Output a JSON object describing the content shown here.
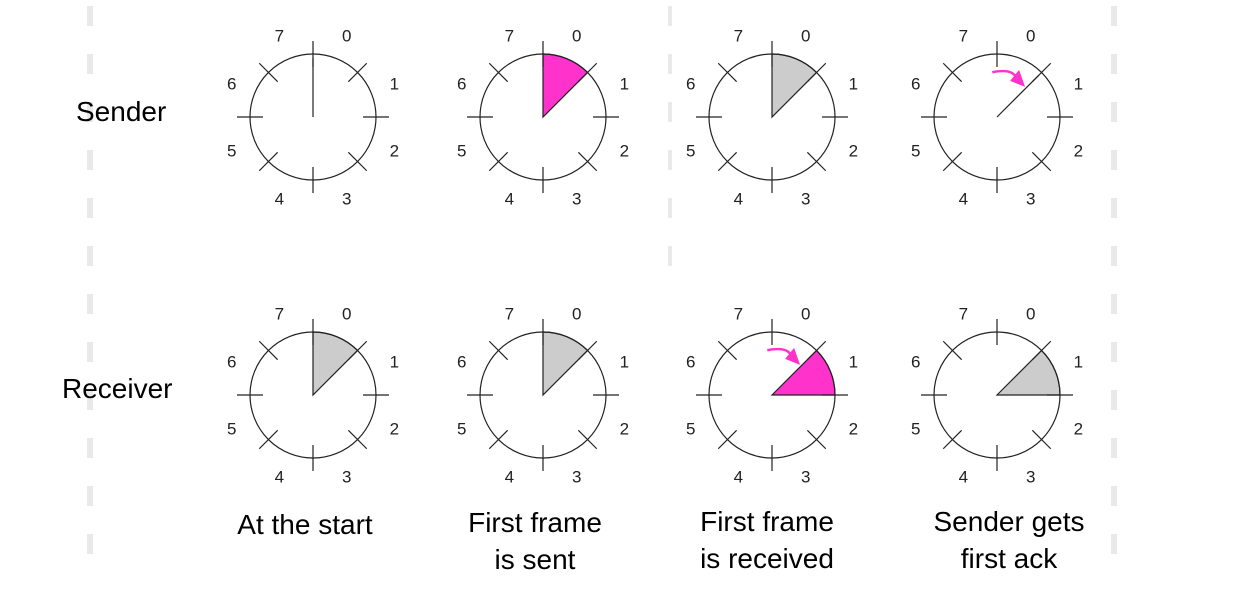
{
  "rows": {
    "sender": "Sender",
    "receiver": "Receiver"
  },
  "sequence_numbers": [
    "0",
    "1",
    "2",
    "3",
    "4",
    "5",
    "6",
    "7"
  ],
  "columns": [
    {
      "caption": [
        "At the start"
      ],
      "sender": {
        "window": null,
        "arrow": false,
        "pointer": true
      },
      "receiver": {
        "window": "gray",
        "arrow": false
      }
    },
    {
      "caption": [
        "First frame",
        "is sent"
      ],
      "sender": {
        "window": "magenta",
        "arrow": false
      },
      "receiver": {
        "window": "gray",
        "arrow": false
      }
    },
    {
      "caption": [
        "First frame",
        "is received"
      ],
      "sender": {
        "window": "gray",
        "arrow": false
      },
      "receiver": {
        "window": "magenta",
        "arrow": true
      }
    },
    {
      "caption": [
        "Sender gets",
        "first ack"
      ],
      "sender": {
        "window": null,
        "arrow": true,
        "pointer": true
      },
      "receiver": {
        "window": "gray",
        "arrow": false
      }
    }
  ],
  "colors": {
    "magenta": "#ff33cc",
    "gray": "#cccccc",
    "stroke": "#222222",
    "divider": "#e9e9e9"
  }
}
